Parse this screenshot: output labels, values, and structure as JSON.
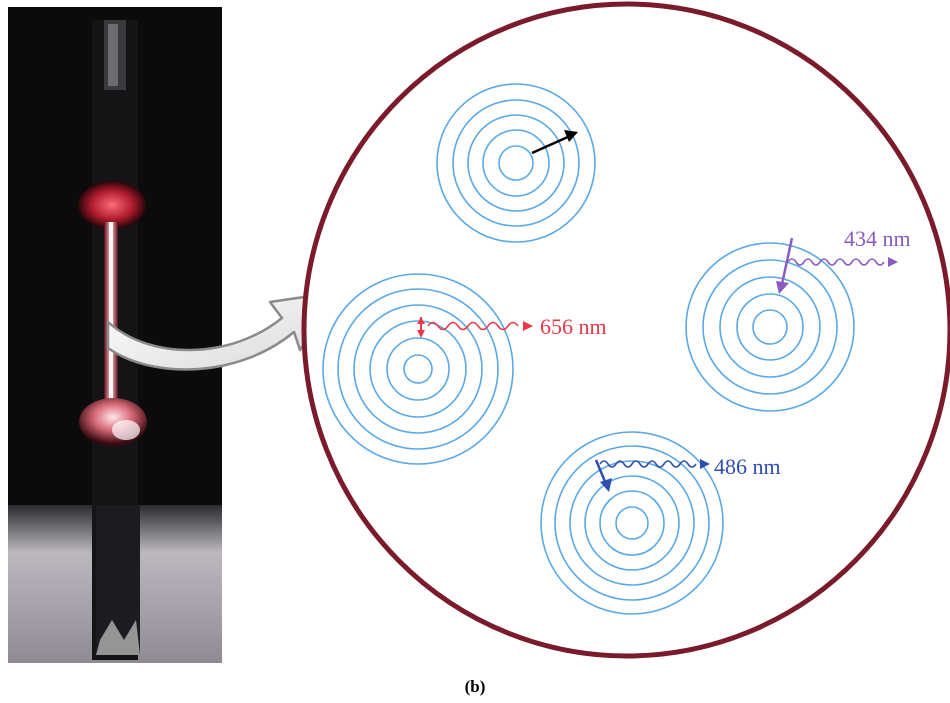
{
  "caption": "(b)",
  "photo": {
    "subject": "hydrogen discharge tube photograph"
  },
  "colors": {
    "circle_outline": "#7a1a2a",
    "orbit": "#5aa9e6",
    "line_656": "#e8394a",
    "line_486": "#2f4fb0",
    "line_434": "#8a5cc0",
    "radial_arrow": "#000000"
  },
  "atoms": [
    {
      "id": "top-atom",
      "transition": "none",
      "arrow": "radial-outward"
    },
    {
      "id": "left-atom",
      "label": "656 nm",
      "color_key": "line_656"
    },
    {
      "id": "right-atom",
      "label": "434 nm",
      "color_key": "line_434"
    },
    {
      "id": "bottom-atom",
      "label": "486 nm",
      "color_key": "line_486"
    }
  ]
}
